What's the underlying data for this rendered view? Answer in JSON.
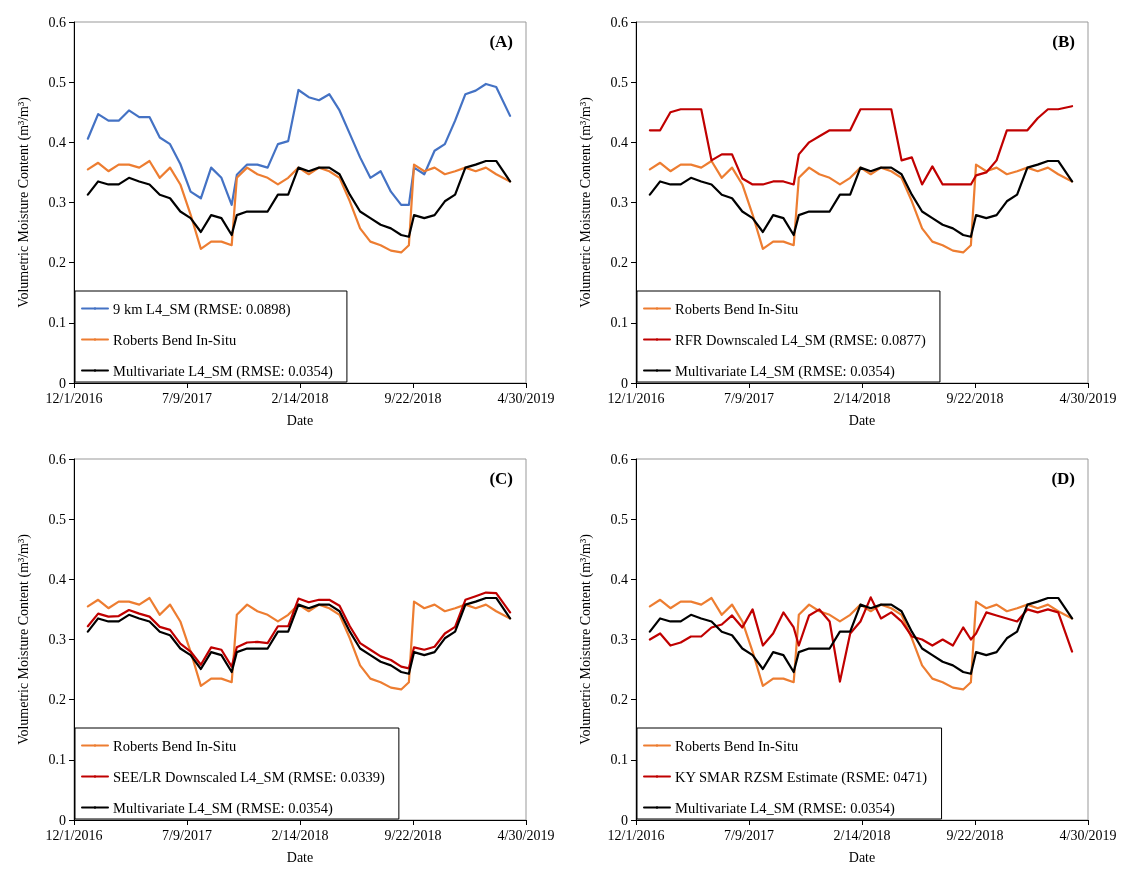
{
  "chart_data": [
    {
      "type": "line",
      "title": "(A)",
      "xlabel": "Date",
      "ylabel": "Volumetric Moisture Content (m³/m³)",
      "legend": "bottom left",
      "line_style": "solid",
      "xlim": [
        "2016-12-01",
        "2019-04-30"
      ],
      "xticks": [
        {
          "value": "2016-12-01",
          "label": "12/1/2016"
        },
        {
          "value": "2017-07-09",
          "label": "7/9/2017"
        },
        {
          "value": "2018-02-14",
          "label": "2/14/2018"
        },
        {
          "value": "2018-09-22",
          "label": "9/22/2018"
        },
        {
          "value": "2019-04-30",
          "label": "4/30/2019"
        }
      ],
      "ylim": [
        0,
        0.6
      ],
      "yticks": [
        0,
        0.1,
        0.2,
        0.3,
        0.4,
        0.5,
        0.6
      ],
      "x": [
        "2016-12-28",
        "2017-01-17",
        "2017-02-06",
        "2017-02-26",
        "2017-03-18",
        "2017-04-07",
        "2017-04-27",
        "2017-05-17",
        "2017-06-06",
        "2017-06-26",
        "2017-07-16",
        "2017-08-05",
        "2017-08-25",
        "2017-09-14",
        "2017-10-04",
        "2017-10-14",
        "2017-11-03",
        "2017-11-23",
        "2017-12-13",
        "2018-01-02",
        "2018-01-22",
        "2018-02-11",
        "2018-03-03",
        "2018-03-23",
        "2018-04-12",
        "2018-05-02",
        "2018-05-22",
        "2018-06-11",
        "2018-07-01",
        "2018-07-21",
        "2018-08-10",
        "2018-08-30",
        "2018-09-14",
        "2018-09-24",
        "2018-10-14",
        "2018-11-03",
        "2018-11-23",
        "2018-12-13",
        "2019-01-02",
        "2019-01-22",
        "2019-02-11",
        "2019-03-03",
        "2019-03-30"
      ],
      "series": [
        {
          "name": "9 km L4_SM (RMSE: 0.0898)",
          "color": "#4472c4",
          "values": [
            0.406,
            0.447,
            0.436,
            0.436,
            0.453,
            0.442,
            0.442,
            0.408,
            0.397,
            0.364,
            0.318,
            0.307,
            0.358,
            0.341,
            0.296,
            0.346,
            0.363,
            0.363,
            0.358,
            0.397,
            0.402,
            0.487,
            0.475,
            0.47,
            0.48,
            0.453,
            0.414,
            0.375,
            0.341,
            0.352,
            0.318,
            0.296,
            0.296,
            0.358,
            0.347,
            0.386,
            0.397,
            0.436,
            0.48,
            0.486,
            0.497,
            0.492,
            0.444
          ]
        },
        {
          "name": "Roberts Bend In-Situ",
          "color": "#ed7d31",
          "values": [
            0.355,
            0.366,
            0.352,
            0.363,
            0.363,
            0.358,
            0.369,
            0.341,
            0.358,
            0.33,
            0.28,
            0.223,
            0.235,
            0.235,
            0.229,
            0.341,
            0.358,
            0.347,
            0.341,
            0.33,
            0.341,
            0.358,
            0.347,
            0.358,
            0.352,
            0.341,
            0.302,
            0.257,
            0.235,
            0.229,
            0.22,
            0.217,
            0.229,
            0.363,
            0.352,
            0.358,
            0.347,
            0.352,
            0.358,
            0.352,
            0.358,
            0.347,
            0.335
          ]
        },
        {
          "name": "Multivariate L4_SM (RMSE: 0.0354)",
          "color": "#000000",
          "values": [
            0.313,
            0.335,
            0.33,
            0.33,
            0.341,
            0.335,
            0.33,
            0.313,
            0.307,
            0.285,
            0.274,
            0.251,
            0.279,
            0.274,
            0.246,
            0.279,
            0.285,
            0.285,
            0.285,
            0.313,
            0.313,
            0.358,
            0.352,
            0.358,
            0.358,
            0.347,
            0.313,
            0.285,
            0.274,
            0.263,
            0.257,
            0.246,
            0.243,
            0.279,
            0.274,
            0.279,
            0.302,
            0.313,
            0.358,
            0.363,
            0.369,
            0.369,
            0.335
          ]
        }
      ]
    },
    {
      "type": "line",
      "title": "(B)",
      "xlabel": "Date",
      "ylabel": "Volumetric Moisture Content (m³/m³)",
      "legend": "bottom left",
      "line_style": "solid",
      "xlim": [
        "2016-12-01",
        "2019-04-30"
      ],
      "xticks": [
        {
          "value": "2016-12-01",
          "label": "12/1/2016"
        },
        {
          "value": "2017-07-09",
          "label": "7/9/2017"
        },
        {
          "value": "2018-02-14",
          "label": "2/14/2018"
        },
        {
          "value": "2018-09-22",
          "label": "9/22/2018"
        },
        {
          "value": "2019-04-30",
          "label": "4/30/2019"
        }
      ],
      "ylim": [
        0,
        0.6
      ],
      "yticks": [
        0,
        0.1,
        0.2,
        0.3,
        0.4,
        0.5,
        0.6
      ],
      "x": [
        "2016-12-28",
        "2017-01-17",
        "2017-02-06",
        "2017-02-26",
        "2017-03-18",
        "2017-04-07",
        "2017-04-27",
        "2017-05-17",
        "2017-06-06",
        "2017-06-26",
        "2017-07-16",
        "2017-08-05",
        "2017-08-25",
        "2017-09-14",
        "2017-10-04",
        "2017-10-14",
        "2017-11-03",
        "2017-11-23",
        "2017-12-13",
        "2018-01-02",
        "2018-01-22",
        "2018-02-11",
        "2018-03-03",
        "2018-03-23",
        "2018-04-12",
        "2018-05-02",
        "2018-05-22",
        "2018-06-11",
        "2018-07-01",
        "2018-07-21",
        "2018-08-10",
        "2018-08-30",
        "2018-09-14",
        "2018-09-24",
        "2018-10-14",
        "2018-11-03",
        "2018-11-23",
        "2018-12-13",
        "2019-01-02",
        "2019-01-22",
        "2019-02-11",
        "2019-03-03",
        "2019-03-30"
      ],
      "series": [
        {
          "name": "Roberts Bend In-Situ",
          "color": "#ed7d31",
          "values": [
            0.355,
            0.366,
            0.352,
            0.363,
            0.363,
            0.358,
            0.369,
            0.341,
            0.358,
            0.33,
            0.28,
            0.223,
            0.235,
            0.235,
            0.229,
            0.341,
            0.358,
            0.347,
            0.341,
            0.33,
            0.341,
            0.358,
            0.347,
            0.358,
            0.352,
            0.341,
            0.302,
            0.257,
            0.235,
            0.229,
            0.22,
            0.217,
            0.229,
            0.363,
            0.352,
            0.358,
            0.347,
            0.352,
            0.358,
            0.352,
            0.358,
            0.347,
            0.335
          ]
        },
        {
          "name": "RFR Downscaled L4_SM (RMSE: 0.0877)",
          "color": "#c00000",
          "values": [
            0.42,
            0.42,
            0.45,
            0.455,
            0.455,
            0.455,
            0.37,
            0.38,
            0.38,
            0.34,
            0.33,
            0.33,
            0.335,
            0.335,
            0.33,
            0.38,
            0.4,
            0.41,
            0.42,
            0.42,
            0.42,
            0.455,
            0.455,
            0.455,
            0.455,
            0.37,
            0.375,
            0.33,
            0.36,
            0.33,
            0.33,
            0.33,
            0.33,
            0.345,
            0.35,
            0.37,
            0.42,
            0.42,
            0.42,
            0.44,
            0.455,
            0.455,
            0.46
          ]
        },
        {
          "name": "Multivariate L4_SM (RMSE: 0.0354)",
          "color": "#000000",
          "values": [
            0.313,
            0.335,
            0.33,
            0.33,
            0.341,
            0.335,
            0.33,
            0.313,
            0.307,
            0.285,
            0.274,
            0.251,
            0.279,
            0.274,
            0.246,
            0.279,
            0.285,
            0.285,
            0.285,
            0.313,
            0.313,
            0.358,
            0.352,
            0.358,
            0.358,
            0.347,
            0.313,
            0.285,
            0.274,
            0.263,
            0.257,
            0.246,
            0.243,
            0.279,
            0.274,
            0.279,
            0.302,
            0.313,
            0.358,
            0.363,
            0.369,
            0.369,
            0.335
          ]
        }
      ]
    },
    {
      "type": "line",
      "title": "(C)",
      "xlabel": "Date",
      "ylabel": "Volumetric Moisture Content (m³/m³)",
      "legend": "bottom left",
      "line_style": "solid",
      "xlim": [
        "2016-12-01",
        "2019-04-30"
      ],
      "xticks": [
        {
          "value": "2016-12-01",
          "label": "12/1/2016"
        },
        {
          "value": "2017-07-09",
          "label": "7/9/2017"
        },
        {
          "value": "2018-02-14",
          "label": "2/14/2018"
        },
        {
          "value": "2018-09-22",
          "label": "9/22/2018"
        },
        {
          "value": "2019-04-30",
          "label": "4/30/2019"
        }
      ],
      "ylim": [
        0,
        0.6
      ],
      "yticks": [
        0,
        0.1,
        0.2,
        0.3,
        0.4,
        0.5,
        0.6
      ],
      "x": [
        "2016-12-28",
        "2017-01-17",
        "2017-02-06",
        "2017-02-26",
        "2017-03-18",
        "2017-04-07",
        "2017-04-27",
        "2017-05-17",
        "2017-06-06",
        "2017-06-26",
        "2017-07-16",
        "2017-08-05",
        "2017-08-25",
        "2017-09-14",
        "2017-10-04",
        "2017-10-14",
        "2017-11-03",
        "2017-11-23",
        "2017-12-13",
        "2018-01-02",
        "2018-01-22",
        "2018-02-11",
        "2018-03-03",
        "2018-03-23",
        "2018-04-12",
        "2018-05-02",
        "2018-05-22",
        "2018-06-11",
        "2018-07-01",
        "2018-07-21",
        "2018-08-10",
        "2018-08-30",
        "2018-09-14",
        "2018-09-24",
        "2018-10-14",
        "2018-11-03",
        "2018-11-23",
        "2018-12-13",
        "2019-01-02",
        "2019-01-22",
        "2019-02-11",
        "2019-03-03",
        "2019-03-30"
      ],
      "series": [
        {
          "name": "Roberts Bend In-Situ",
          "color": "#ed7d31",
          "values": [
            0.355,
            0.366,
            0.352,
            0.363,
            0.363,
            0.358,
            0.369,
            0.341,
            0.358,
            0.33,
            0.28,
            0.223,
            0.235,
            0.235,
            0.229,
            0.341,
            0.358,
            0.347,
            0.341,
            0.33,
            0.341,
            0.358,
            0.347,
            0.358,
            0.352,
            0.341,
            0.302,
            0.257,
            0.235,
            0.229,
            0.22,
            0.217,
            0.229,
            0.363,
            0.352,
            0.358,
            0.347,
            0.352,
            0.358,
            0.352,
            0.358,
            0.347,
            0.335
          ]
        },
        {
          "name": "SEE/LR Downscaled L4_SM (RMSE: 0.0339)",
          "color": "#c00000",
          "values": [
            0.322,
            0.343,
            0.338,
            0.339,
            0.349,
            0.343,
            0.338,
            0.321,
            0.316,
            0.293,
            0.28,
            0.258,
            0.287,
            0.283,
            0.255,
            0.287,
            0.295,
            0.296,
            0.294,
            0.322,
            0.322,
            0.368,
            0.362,
            0.366,
            0.366,
            0.356,
            0.322,
            0.294,
            0.283,
            0.272,
            0.266,
            0.255,
            0.252,
            0.287,
            0.283,
            0.288,
            0.31,
            0.321,
            0.366,
            0.372,
            0.378,
            0.377,
            0.345
          ]
        },
        {
          "name": "Multivariate L4_SM (RMSE: 0.0354)",
          "color": "#000000",
          "values": [
            0.313,
            0.335,
            0.33,
            0.33,
            0.341,
            0.335,
            0.33,
            0.313,
            0.307,
            0.285,
            0.274,
            0.251,
            0.279,
            0.274,
            0.246,
            0.279,
            0.285,
            0.285,
            0.285,
            0.313,
            0.313,
            0.358,
            0.352,
            0.358,
            0.358,
            0.347,
            0.313,
            0.285,
            0.274,
            0.263,
            0.257,
            0.246,
            0.243,
            0.279,
            0.274,
            0.279,
            0.302,
            0.313,
            0.358,
            0.363,
            0.369,
            0.369,
            0.335
          ]
        }
      ]
    },
    {
      "type": "line",
      "title": "(D)",
      "xlabel": "Date",
      "ylabel": "Volumetric Moisture Content (m³/m³)",
      "legend": "bottom left",
      "line_style": "solid",
      "xlim": [
        "2016-12-01",
        "2019-04-30"
      ],
      "xticks": [
        {
          "value": "2016-12-01",
          "label": "12/1/2016"
        },
        {
          "value": "2017-07-09",
          "label": "7/9/2017"
        },
        {
          "value": "2018-02-14",
          "label": "2/14/2018"
        },
        {
          "value": "2018-09-22",
          "label": "9/22/2018"
        },
        {
          "value": "2019-04-30",
          "label": "4/30/2019"
        }
      ],
      "ylim": [
        0,
        0.6
      ],
      "yticks": [
        0,
        0.1,
        0.2,
        0.3,
        0.4,
        0.5,
        0.6
      ],
      "x": [
        "2016-12-28",
        "2017-01-17",
        "2017-02-06",
        "2017-02-26",
        "2017-03-18",
        "2017-04-07",
        "2017-04-27",
        "2017-05-17",
        "2017-06-06",
        "2017-06-26",
        "2017-07-16",
        "2017-08-05",
        "2017-08-25",
        "2017-09-14",
        "2017-10-04",
        "2017-10-14",
        "2017-11-03",
        "2017-11-23",
        "2017-12-13",
        "2018-01-02",
        "2018-01-22",
        "2018-02-11",
        "2018-03-03",
        "2018-03-23",
        "2018-04-12",
        "2018-05-02",
        "2018-05-22",
        "2018-06-11",
        "2018-07-01",
        "2018-07-21",
        "2018-08-10",
        "2018-08-30",
        "2018-09-14",
        "2018-09-24",
        "2018-10-14",
        "2018-11-03",
        "2018-11-23",
        "2018-12-13",
        "2019-01-02",
        "2019-01-22",
        "2019-02-11",
        "2019-03-03",
        "2019-03-30"
      ],
      "series": [
        {
          "name": "Roberts Bend In-Situ",
          "color": "#ed7d31",
          "values": [
            0.355,
            0.366,
            0.352,
            0.363,
            0.363,
            0.358,
            0.369,
            0.341,
            0.358,
            0.33,
            0.28,
            0.223,
            0.235,
            0.235,
            0.229,
            0.341,
            0.358,
            0.347,
            0.341,
            0.33,
            0.341,
            0.358,
            0.347,
            0.358,
            0.352,
            0.341,
            0.302,
            0.257,
            0.235,
            0.229,
            0.22,
            0.217,
            0.229,
            0.363,
            0.352,
            0.358,
            0.347,
            0.352,
            0.358,
            0.352,
            0.358,
            0.347,
            0.335
          ]
        },
        {
          "name": "KY SMAR RZSM Estimate (RSME: 0471)",
          "color": "#c00000",
          "values": [
            0.3,
            0.31,
            0.29,
            0.295,
            0.305,
            0.305,
            0.32,
            0.325,
            0.34,
            0.32,
            0.35,
            0.29,
            0.31,
            0.345,
            0.32,
            0.29,
            0.34,
            0.35,
            0.33,
            0.23,
            0.31,
            0.33,
            0.37,
            0.335,
            0.345,
            0.33,
            0.305,
            0.3,
            0.29,
            0.3,
            0.29,
            0.32,
            0.3,
            0.31,
            0.345,
            0.34,
            0.335,
            0.33,
            0.35,
            0.345,
            0.35,
            0.345,
            0.28
          ]
        },
        {
          "name": "Multivariate L4_SM (RMSE: 0.0354)",
          "color": "#000000",
          "values": [
            0.313,
            0.335,
            0.33,
            0.33,
            0.341,
            0.335,
            0.33,
            0.313,
            0.307,
            0.285,
            0.274,
            0.251,
            0.279,
            0.274,
            0.246,
            0.279,
            0.285,
            0.285,
            0.285,
            0.313,
            0.313,
            0.358,
            0.352,
            0.358,
            0.358,
            0.347,
            0.313,
            0.285,
            0.274,
            0.263,
            0.257,
            0.246,
            0.243,
            0.279,
            0.274,
            0.279,
            0.302,
            0.313,
            0.358,
            0.363,
            0.369,
            0.369,
            0.335
          ]
        }
      ]
    }
  ]
}
